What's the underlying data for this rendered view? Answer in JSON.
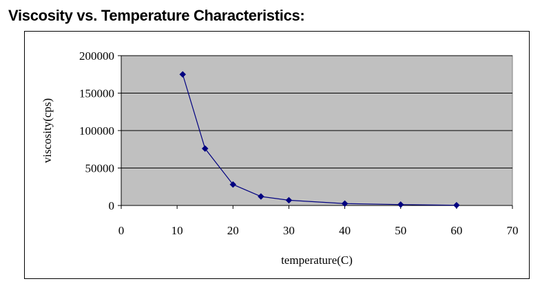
{
  "heading": "Viscosity vs. Temperature Characteristics:",
  "chart_data": {
    "type": "scatter",
    "title": "",
    "xlabel": "temperature(C)",
    "ylabel": "viscosity(cps)",
    "xlim": [
      0,
      70
    ],
    "ylim": [
      0,
      200000
    ],
    "xticks": [
      0,
      10,
      20,
      30,
      40,
      50,
      60,
      70
    ],
    "yticks": [
      0,
      50000,
      100000,
      150000,
      200000
    ],
    "xtick_labels": [
      "0",
      "10",
      "20",
      "30",
      "40",
      "50",
      "60",
      "70"
    ],
    "ytick_labels": [
      "0",
      "50000",
      "100000",
      "150000",
      "200000"
    ],
    "grid": "horizontal",
    "legend": "none",
    "markers": "diamond",
    "connected": true,
    "colors": {
      "series": "#000080",
      "plot_background": "#c0c0c0",
      "gridline": "#000000"
    },
    "series": [
      {
        "x": [
          11,
          15,
          20,
          25,
          30,
          40,
          50,
          60
        ],
        "y": [
          175000,
          76000,
          28000,
          12000,
          7000,
          2500,
          1200,
          300
        ]
      }
    ]
  }
}
